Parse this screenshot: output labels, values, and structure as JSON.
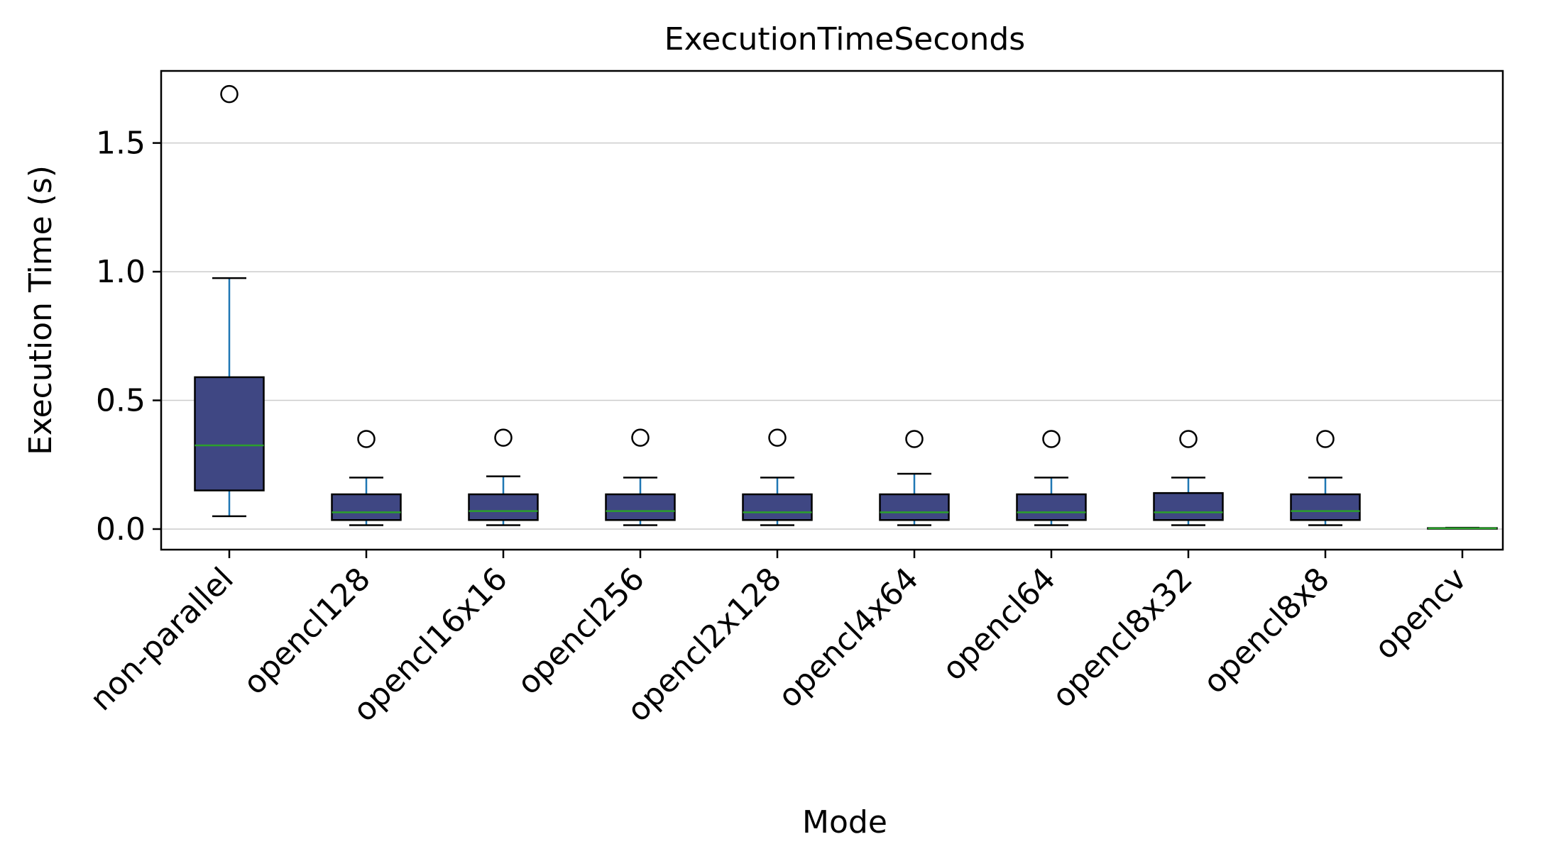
{
  "chart_data": {
    "type": "box",
    "title": "ExecutionTimeSeconds",
    "xlabel": "Mode",
    "ylabel": "Execution Time (s)",
    "ylim": [
      -0.08,
      1.78
    ],
    "yticks": [
      0.0,
      0.5,
      1.0,
      1.5
    ],
    "ytick_labels": [
      "0.0",
      "0.5",
      "1.0",
      "1.5"
    ],
    "grid": "horizontal",
    "categories": [
      "non-parallel",
      "opencl128",
      "opencl16x16",
      "opencl256",
      "opencl2x128",
      "opencl4x64",
      "opencl64",
      "opencl8x32",
      "opencl8x8",
      "opencv"
    ],
    "boxes": [
      {
        "whislo": 0.05,
        "q1": 0.15,
        "med": 0.325,
        "q3": 0.59,
        "whishi": 0.975,
        "fliers": [
          1.69
        ]
      },
      {
        "whislo": 0.015,
        "q1": 0.035,
        "med": 0.065,
        "q3": 0.135,
        "whishi": 0.2,
        "fliers": [
          0.35
        ]
      },
      {
        "whislo": 0.015,
        "q1": 0.035,
        "med": 0.07,
        "q3": 0.135,
        "whishi": 0.205,
        "fliers": [
          0.355
        ]
      },
      {
        "whislo": 0.015,
        "q1": 0.035,
        "med": 0.07,
        "q3": 0.135,
        "whishi": 0.2,
        "fliers": [
          0.355
        ]
      },
      {
        "whislo": 0.015,
        "q1": 0.035,
        "med": 0.065,
        "q3": 0.135,
        "whishi": 0.2,
        "fliers": [
          0.355
        ]
      },
      {
        "whislo": 0.015,
        "q1": 0.035,
        "med": 0.065,
        "q3": 0.135,
        "whishi": 0.215,
        "fliers": [
          0.35
        ]
      },
      {
        "whislo": 0.015,
        "q1": 0.035,
        "med": 0.065,
        "q3": 0.135,
        "whishi": 0.2,
        "fliers": [
          0.35
        ]
      },
      {
        "whislo": 0.015,
        "q1": 0.035,
        "med": 0.065,
        "q3": 0.14,
        "whishi": 0.2,
        "fliers": [
          0.35
        ]
      },
      {
        "whislo": 0.015,
        "q1": 0.035,
        "med": 0.07,
        "q3": 0.135,
        "whishi": 0.2,
        "fliers": [
          0.35
        ]
      },
      {
        "whislo": 0.002,
        "q1": 0.002,
        "med": 0.003,
        "q3": 0.004,
        "whishi": 0.005,
        "fliers": []
      }
    ],
    "colors": {
      "box_fill": "#3f4783",
      "box_edge": "#000000",
      "whisker": "#1f77b4",
      "median": "#2ca02c",
      "grid": "#cccccc",
      "axes": "#000000"
    }
  }
}
